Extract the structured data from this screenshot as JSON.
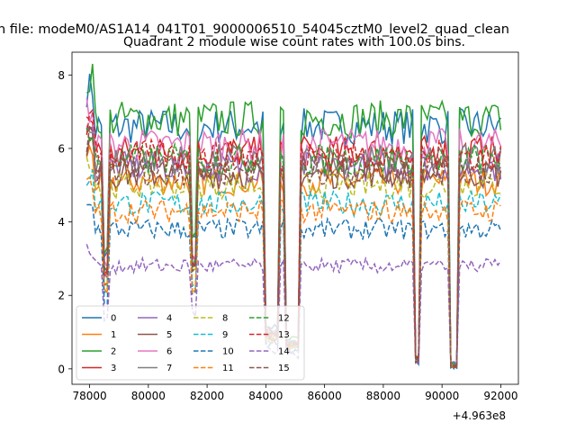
{
  "chart_data": {
    "type": "line",
    "suptitle": "n file: modeM0/AS1A14_041T01_9000006510_54045cztM0_level2_quad_clean",
    "title": "Quadrant 2 module wise count rates with 100.0s bins.",
    "xlabel": "",
    "ylabel": "",
    "x_offset_label": "+4.963e8",
    "xlim": [
      77400,
      92600
    ],
    "ylim": [
      -0.42,
      8.62
    ],
    "x_ticks": [
      78000,
      80000,
      82000,
      84000,
      86000,
      88000,
      90000,
      92000
    ],
    "x_tick_labels": [
      "78000",
      "80000",
      "82000",
      "84000",
      "86000",
      "88000",
      "90000",
      "92000"
    ],
    "y_ticks": [
      0,
      2,
      4,
      6,
      8
    ],
    "y_tick_labels": [
      "0",
      "2",
      "4",
      "6",
      "8"
    ],
    "x_start": 77900,
    "x_step": 100,
    "n_points": 142,
    "gaps": [
      {
        "start": 78500,
        "end": 78600,
        "drop": 0.55
      },
      {
        "start": 81500,
        "end": 81600,
        "drop": 0.5
      },
      {
        "start": 84000,
        "end": 84400,
        "drop": 0.85
      },
      {
        "start": 84700,
        "end": 85100,
        "drop": 0.9
      },
      {
        "start": 89100,
        "end": 89200,
        "drop": 0.97
      },
      {
        "start": 90300,
        "end": 90500,
        "drop": 1.0
      }
    ],
    "legend": {
      "position": "lower-left",
      "columns": 4
    },
    "series": [
      {
        "name": "0",
        "color": "#1f77b4",
        "dash": "solid",
        "level": 6.6
      },
      {
        "name": "1",
        "color": "#ff7f0e",
        "dash": "solid",
        "level": 5.1
      },
      {
        "name": "2",
        "color": "#2ca02c",
        "dash": "solid",
        "level": 6.8
      },
      {
        "name": "3",
        "color": "#d62728",
        "dash": "solid",
        "level": 5.9
      },
      {
        "name": "4",
        "color": "#9467bd",
        "dash": "solid",
        "level": 5.5
      },
      {
        "name": "5",
        "color": "#8c564b",
        "dash": "solid",
        "level": 5.3
      },
      {
        "name": "6",
        "color": "#e377c2",
        "dash": "solid",
        "level": 6.1
      },
      {
        "name": "7",
        "color": "#7f7f7f",
        "dash": "solid",
        "level": 5.7
      },
      {
        "name": "8",
        "color": "#bcbd22",
        "dash": "dashed",
        "level": 5.0
      },
      {
        "name": "9",
        "color": "#17becf",
        "dash": "dashed",
        "level": 4.5
      },
      {
        "name": "10",
        "color": "#1f77b4",
        "dash": "dashed",
        "level": 3.8
      },
      {
        "name": "11",
        "color": "#ff7f0e",
        "dash": "dashed",
        "level": 4.3
      },
      {
        "name": "12",
        "color": "#2ca02c",
        "dash": "dashed",
        "level": 5.7
      },
      {
        "name": "13",
        "color": "#d62728",
        "dash": "dashed",
        "level": 5.8
      },
      {
        "name": "14",
        "color": "#9467bd",
        "dash": "dashed",
        "level": 2.8
      },
      {
        "name": "15",
        "color": "#8c564b",
        "dash": "dashed",
        "level": 5.4
      }
    ]
  }
}
